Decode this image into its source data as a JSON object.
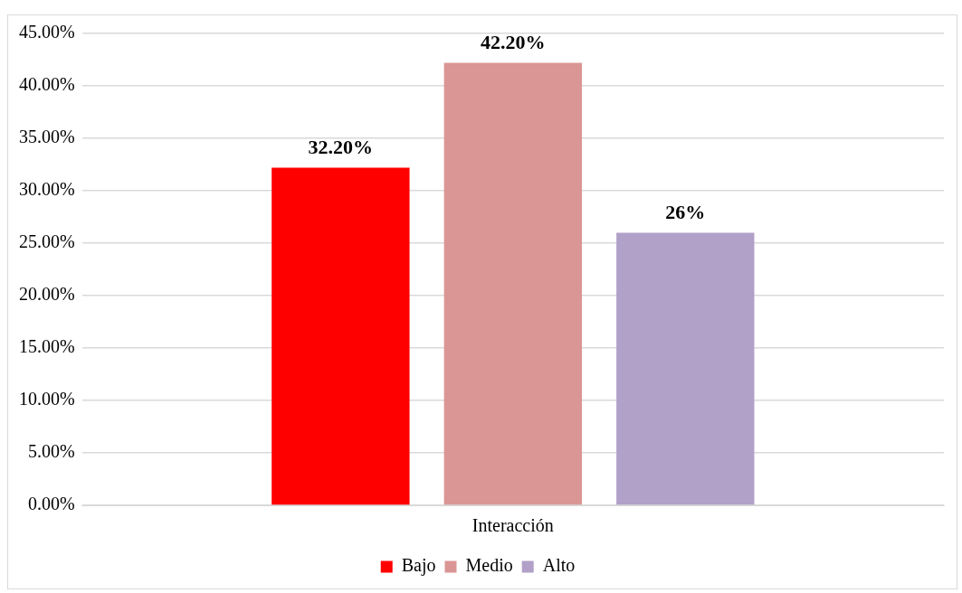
{
  "chart_data": {
    "type": "bar",
    "categories": [
      "Interacción"
    ],
    "series": [
      {
        "name": "Bajo",
        "color": "#ff0000",
        "values": [
          32.2
        ],
        "value_labels": [
          "32.20%"
        ]
      },
      {
        "name": "Medio",
        "color": "#da9694",
        "values": [
          42.2
        ],
        "value_labels": [
          "42.20%"
        ]
      },
      {
        "name": "Alto",
        "color": "#b1a0c7",
        "values": [
          26
        ],
        "value_labels": [
          "26%"
        ]
      }
    ],
    "ylim": [
      0,
      45
    ],
    "yticks": [
      {
        "value": 0,
        "label": "0.00%"
      },
      {
        "value": 5,
        "label": "5.00%"
      },
      {
        "value": 10,
        "label": "10.00%"
      },
      {
        "value": 15,
        "label": "15.00%"
      },
      {
        "value": 20,
        "label": "20.00%"
      },
      {
        "value": 25,
        "label": "25.00%"
      },
      {
        "value": 30,
        "label": "30.00%"
      },
      {
        "value": 35,
        "label": "35.00%"
      },
      {
        "value": 40,
        "label": "40.00%"
      },
      {
        "value": 45,
        "label": "45.00%"
      }
    ],
    "grid": "y",
    "legend": "bottom"
  }
}
